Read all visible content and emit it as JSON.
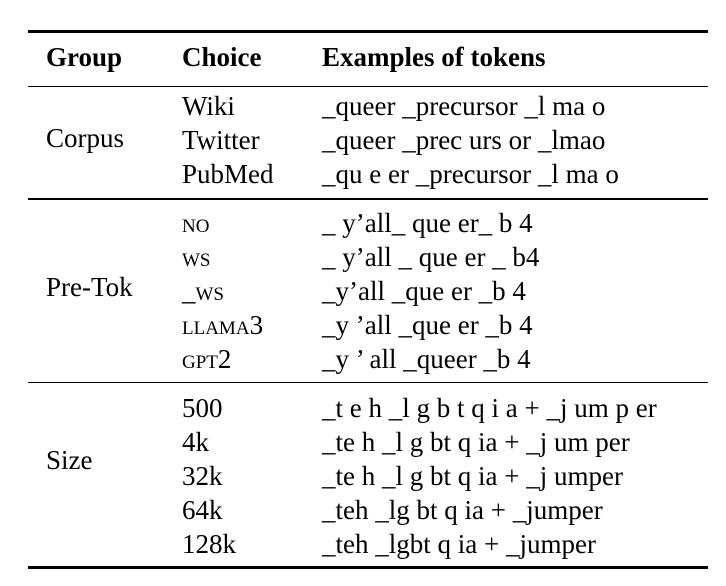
{
  "table": {
    "headers": {
      "group": "Group",
      "choice": "Choice",
      "tokens": "Examples of tokens"
    },
    "sections": [
      {
        "group": "Corpus",
        "rows": [
          {
            "choice": "Wiki",
            "tokens": "_queer _precursor _l ma o"
          },
          {
            "choice": "Twitter",
            "tokens": "_queer _prec urs or _lmao"
          },
          {
            "choice": "PubMed",
            "tokens": "_qu e er _precursor _l ma o"
          }
        ]
      },
      {
        "group": "Pre-Tok",
        "rows": [
          {
            "choice": "NO",
            "tokens": "_ y’all_ que er_ b 4"
          },
          {
            "choice": "WS",
            "tokens": "_ y’all _ que er _ b4"
          },
          {
            "choice": "_WS",
            "tokens": "_y’all _que er _b 4"
          },
          {
            "choice": "LLAMA",
            "choice_suffix": "3",
            "tokens": "_y ’all _que er _b 4"
          },
          {
            "choice": "GPT",
            "choice_suffix": "2",
            "tokens": "_y ’ all _queer _b 4"
          }
        ]
      },
      {
        "group": "Size",
        "rows": [
          {
            "choice": "500",
            "tokens": "_t e h _l g b t q i a + _j um p er"
          },
          {
            "choice": "4k",
            "tokens": "_te h _l g bt q ia + _j um per"
          },
          {
            "choice": "32k",
            "tokens": "_te h _l g bt q ia + _j umper"
          },
          {
            "choice": "64k",
            "tokens": "_teh _lg bt q ia + _jumper"
          },
          {
            "choice": "128k",
            "tokens": "_teh _lgbt q ia + _jumper"
          }
        ]
      }
    ]
  }
}
